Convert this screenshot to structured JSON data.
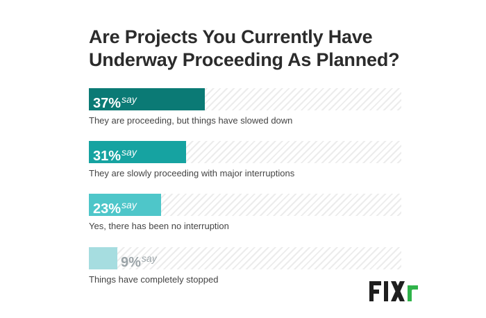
{
  "chart_data": {
    "type": "bar",
    "orientation": "horizontal",
    "title": "Are Projects You Currently Have Underway Proceeding As Planned?",
    "value_suffix": "say",
    "xlim": [
      0,
      100
    ],
    "series": [
      {
        "label": "They are proceeding, but things have slowed down",
        "value": 37,
        "display": "37%",
        "color": "#0b7a75"
      },
      {
        "label": "They are slowly proceeding with major interruptions",
        "value": 31,
        "display": "31%",
        "color": "#16a3a1"
      },
      {
        "label": "Yes, there has been no interruption",
        "value": 23,
        "display": "23%",
        "color": "#4ec6c9"
      },
      {
        "label": "Things have completely stopped",
        "value": 9,
        "display": "9%",
        "color": "#a6dde0"
      }
    ]
  },
  "brand": {
    "name": "FIXR",
    "colors": {
      "dark": "#1f1f1f",
      "accent": "#2fb34a"
    }
  }
}
